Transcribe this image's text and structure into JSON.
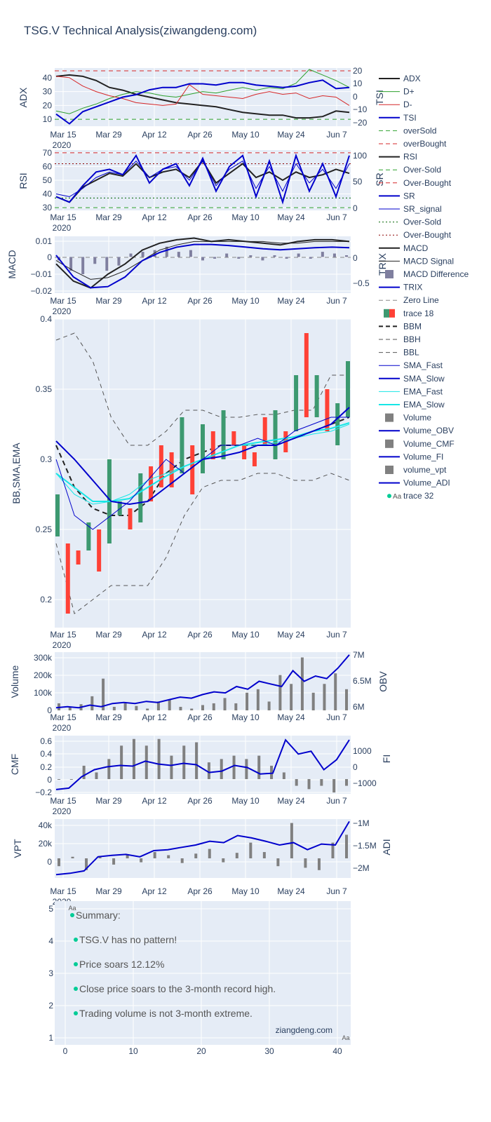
{
  "title": "TSG.V Technical Analysis(ziwangdeng.com)",
  "colors": {
    "plot_bg": "#e5ecf6",
    "grid": "#ffffff",
    "text": "#2a3f5f",
    "black": "#222222",
    "blue": "#0000cc",
    "green": "#2ca02c",
    "red": "#d62728",
    "cyan": "#17e6e6",
    "bar_gray": "#808080",
    "up": "#3d9970",
    "down": "#ff4136",
    "marker": "#00cc96"
  },
  "x_ticks": [
    "Mar 15",
    "Mar 29",
    "Apr 12",
    "Apr 26",
    "May 10",
    "May 24",
    "Jun 7"
  ],
  "x_year": "2020",
  "legend": [
    "ADX",
    "D+",
    "D-",
    "TSI",
    "overSold",
    "overBought",
    "RSI",
    "Over-Sold",
    "Over-Bought",
    "SR",
    "SR_signal",
    "Over-Sold",
    "Over-Bought",
    "MACD",
    "MACD Signal",
    "MACD Difference",
    "TRIX",
    "Zero Line",
    "trace 18",
    "BBM",
    "BBH",
    "BBL",
    "SMA_Fast",
    "SMA_Slow",
    "EMA_Fast",
    "EMA_Slow",
    "Volume",
    "Volume_OBV",
    "Volume_CMF",
    "Volume_FI",
    "volume_vpt",
    "Volume_ADI",
    "trace 32"
  ],
  "legend_marker_text": "Aa",
  "chart_data": [
    {
      "type": "line",
      "axis_title": "ADX",
      "right_axis_title": "TSI",
      "y_ticks": [
        "10",
        "20",
        "30",
        "40"
      ],
      "right_ticks": [
        "20",
        "10",
        "0",
        "−10",
        "−20"
      ],
      "series": [
        {
          "name": "ADX",
          "values": [
            41,
            42,
            41,
            38,
            33,
            31,
            28,
            26,
            24,
            22,
            21,
            20,
            19,
            17,
            15,
            14,
            13,
            13,
            11,
            11,
            12,
            16,
            15
          ]
        },
        {
          "name": "D+",
          "values": [
            16,
            14,
            18,
            21,
            25,
            28,
            30,
            29,
            27,
            26,
            28,
            30,
            29,
            31,
            33,
            31,
            33,
            32,
            36,
            46,
            42,
            38,
            33
          ]
        },
        {
          "name": "D-",
          "values": [
            41,
            40,
            34,
            30,
            27,
            25,
            22,
            21,
            20,
            21,
            35,
            28,
            27,
            26,
            25,
            28,
            30,
            28,
            29,
            25,
            27,
            26,
            20
          ]
        },
        {
          "name": "TSI",
          "values": [
            -14,
            -22,
            -12,
            -8,
            -4,
            0,
            2,
            6,
            8,
            8,
            11,
            11,
            10,
            12,
            12,
            10,
            9,
            8,
            9,
            12,
            14,
            7,
            8
          ]
        }
      ],
      "overSold": 10,
      "overBought": 45
    },
    {
      "type": "line",
      "axis_title": "RSI",
      "right_axis_title": "SR",
      "y_ticks": [
        "30",
        "40",
        "50",
        "60",
        "70"
      ],
      "right_ticks": [
        "100",
        "50",
        "0"
      ],
      "series": [
        {
          "name": "RSI",
          "values": [
            38,
            34,
            45,
            50,
            55,
            53,
            62,
            52,
            56,
            58,
            52,
            64,
            48,
            55,
            62,
            52,
            56,
            50,
            56,
            52,
            54,
            58,
            55
          ]
        },
        {
          "name": "SR",
          "values": [
            20,
            10,
            40,
            65,
            70,
            60,
            95,
            45,
            70,
            80,
            40,
            90,
            30,
            75,
            95,
            20,
            85,
            10,
            95,
            30,
            80,
            20,
            95
          ]
        },
        {
          "name": "SR_signal",
          "values": [
            25,
            20,
            35,
            55,
            65,
            60,
            85,
            55,
            70,
            75,
            50,
            85,
            40,
            70,
            85,
            35,
            75,
            30,
            80,
            45,
            70,
            35,
            80
          ]
        }
      ],
      "over_sold": 30,
      "over_bought": 70
    },
    {
      "type": "line",
      "axis_title": "MACD",
      "right_axis_title": "TRIX",
      "y_ticks": [
        "0.01",
        "0",
        "−0.01",
        "−0.02"
      ],
      "right_ticks": [
        "0",
        "−0.5"
      ],
      "series": [
        {
          "name": "MACD",
          "values": [
            -0.004,
            -0.014,
            -0.018,
            -0.01,
            -0.004,
            0.004,
            0.008,
            0.01,
            0.011,
            0.009,
            0.01,
            0.009,
            0.008,
            0.007,
            0.009,
            0.01,
            0.01,
            0.009
          ]
        },
        {
          "name": "MACD Signal",
          "values": [
            -0.002,
            -0.008,
            -0.013,
            -0.012,
            -0.008,
            -0.002,
            0.004,
            0.007,
            0.009,
            0.009,
            0.009,
            0.009,
            0.009,
            0.008,
            0.008,
            0.009,
            0.009,
            0.009
          ]
        },
        {
          "name": "TRIX",
          "values": [
            0,
            -0.4,
            -0.6,
            -0.58,
            -0.4,
            -0.1,
            0.05,
            0.15,
            0.2,
            0.2,
            0.18,
            0.15,
            0.12,
            0.1,
            0.12,
            0.14,
            0.15,
            0.14
          ]
        }
      ]
    },
    {
      "type": "line",
      "axis_title": "BB,SMA,EMA",
      "y_ticks": [
        "0.4",
        "0.35",
        "0.3",
        "0.25",
        "0.2"
      ],
      "ylim": [
        0.18,
        0.4
      ],
      "series": [
        {
          "name": "BBH",
          "values": [
            0.385,
            0.39,
            0.37,
            0.33,
            0.31,
            0.31,
            0.32,
            0.335,
            0.335,
            0.33,
            0.33,
            0.332,
            0.332,
            0.335,
            0.335,
            0.36,
            0.36
          ]
        },
        {
          "name": "BBL",
          "values": [
            0.24,
            0.19,
            0.2,
            0.21,
            0.21,
            0.21,
            0.23,
            0.26,
            0.28,
            0.285,
            0.285,
            0.29,
            0.29,
            0.285,
            0.285,
            0.29,
            0.285
          ]
        },
        {
          "name": "BBM",
          "values": [
            0.31,
            0.28,
            0.265,
            0.26,
            0.26,
            0.27,
            0.29,
            0.3,
            0.305,
            0.31,
            0.31,
            0.31,
            0.31,
            0.315,
            0.32,
            0.325,
            0.33
          ]
        },
        {
          "name": "SMA_Slow",
          "values": [
            0.313,
            0.3,
            0.285,
            0.27,
            0.268,
            0.27,
            0.28,
            0.29,
            0.3,
            0.302,
            0.305,
            0.31,
            0.31,
            0.315,
            0.32,
            0.325,
            0.337
          ]
        }
      ],
      "annotation": "ziangdeng.com"
    },
    {
      "type": "bar",
      "axis_title": "Volume",
      "right_axis_title": "OBV",
      "y_ticks": [
        "300k",
        "200k",
        "100k",
        "0"
      ],
      "right_ticks": [
        "7M",
        "6.5M",
        "6M"
      ],
      "values": [
        40,
        20,
        35,
        80,
        180,
        20,
        40,
        25,
        10,
        50,
        60,
        20,
        10,
        30,
        40,
        70,
        40,
        100,
        120,
        50,
        200,
        150,
        300,
        100,
        150,
        210,
        120
      ]
    },
    {
      "type": "bar",
      "axis_title": "CMF",
      "right_axis_title": "FI",
      "y_ticks": [
        "0.6",
        "0.4",
        "0.2",
        "0",
        "−0.2"
      ],
      "right_ticks": [
        "1000",
        "0",
        "−1000"
      ],
      "values": [
        0,
        0,
        0.2,
        0.1,
        0.3,
        0.5,
        0.6,
        0.5,
        0.6,
        0.35,
        0.5,
        0.55,
        0.25,
        0.3,
        0.35,
        0.3,
        0.35,
        0.2,
        0.1,
        -0.1,
        -0.15,
        -0.1,
        -0.2,
        -0.1
      ]
    },
    {
      "type": "bar",
      "axis_title": "VPT",
      "right_axis_title": "ADI",
      "y_ticks": [
        "40k",
        "20k",
        "0"
      ],
      "right_ticks": [
        "−1M",
        "−1.5M",
        "−2M"
      ],
      "values": [
        -10000,
        2000,
        -15000,
        3000,
        -8000,
        5000,
        -5000,
        8000,
        4000,
        -6000,
        6000,
        12000,
        -5000,
        7000,
        20000,
        8000,
        -10000,
        45000,
        -12000,
        -15000,
        20000,
        30000
      ]
    }
  ],
  "summary": {
    "y_ticks": [
      "5",
      "4",
      "3",
      "2",
      "1"
    ],
    "x_ticks": [
      "0",
      "10",
      "20",
      "30",
      "40"
    ],
    "lines": [
      "Summary:",
      "TSG.V has no pattern!",
      "Price soars 12.12%",
      "Close price soars to the 3-month record high.",
      "Trading volume is not 3-month extreme."
    ],
    "credit": "ziangdeng.com"
  }
}
